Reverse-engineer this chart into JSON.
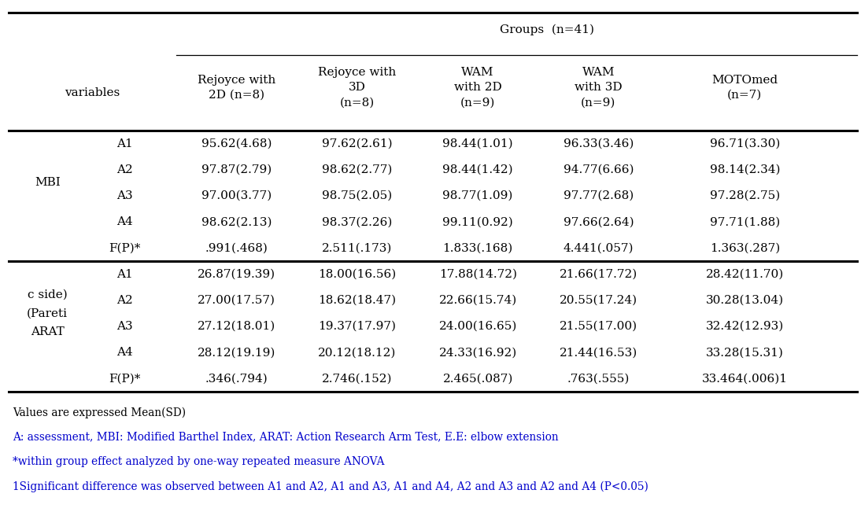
{
  "title": "Groups  (n=41)",
  "col_header_texts": [
    "Rejoyce with\n2D (n=8)",
    "Rejoyce with\n3D\n(n=8)",
    "WAM\nwith 2D\n(n=9)",
    "WAM\nwith 3D\n(n=9)",
    "MOTOmed\n(n=7)"
  ],
  "mbi_label": "MBI",
  "mbi_rows": [
    [
      "A1",
      "95.62(4.68)",
      "97.62(2.61)",
      "98.44(1.01)",
      "96.33(3.46)",
      "96.71(3.30)"
    ],
    [
      "A2",
      "97.87(2.79)",
      "98.62(2.77)",
      "98.44(1.42)",
      "94.77(6.66)",
      "98.14(2.34)"
    ],
    [
      "A3",
      "97.00(3.77)",
      "98.75(2.05)",
      "98.77(1.09)",
      "97.77(2.68)",
      "97.28(2.75)"
    ],
    [
      "A4",
      "98.62(2.13)",
      "98.37(2.26)",
      "99.11(0.92)",
      "97.66(2.64)",
      "97.71(1.88)"
    ],
    [
      "F(P)*",
      ".991(.468)",
      "2.511(.173)",
      "1.833(.168)",
      "4.441(.057)",
      "1.363(.287)"
    ]
  ],
  "arat_label_lines": [
    "ARAT",
    "(Pareti",
    "c side)"
  ],
  "arat_rows": [
    [
      "A1",
      "26.87(19.39)",
      "18.00(16.56)",
      "17.88(14.72)",
      "21.66(17.72)",
      "28.42(11.70)"
    ],
    [
      "A2",
      "27.00(17.57)",
      "18.62(18.47)",
      "22.66(15.74)",
      "20.55(17.24)",
      "30.28(13.04)"
    ],
    [
      "A3",
      "27.12(18.01)",
      "19.37(17.97)",
      "24.00(16.65)",
      "21.55(17.00)",
      "32.42(12.93)"
    ],
    [
      "A4",
      "28.12(19.19)",
      "20.12(18.12)",
      "24.33(16.92)",
      "21.44(16.53)",
      "33.28(15.31)"
    ],
    [
      "F(P)*",
      ".346(.794)",
      "2.746(.152)",
      "2.465(.087)",
      ".763(.555)",
      "33.464(.006)1"
    ]
  ],
  "footnotes": [
    "Values are expressed Mean(SD)",
    "A: assessment, MBI: Modified Barthel Index, ARAT: Action Research Arm Test, E.E: elbow extension",
    "*within group effect analyzed by one-way repeated measure ANOVA",
    "1Significant difference was observed between A1 and A2, A1 and A3, A1 and A4, A2 and A3 and A2 and A4 (P<0.05)"
  ],
  "footnote_colors": [
    "#000000",
    "#0000cc",
    "#0000cc",
    "#0000cc"
  ],
  "bg_color": "#ffffff",
  "text_color": "#000000",
  "font_size": 11.0,
  "footnote_font_size": 9.8,
  "thick_lw": 2.2,
  "thin_lw": 0.9
}
